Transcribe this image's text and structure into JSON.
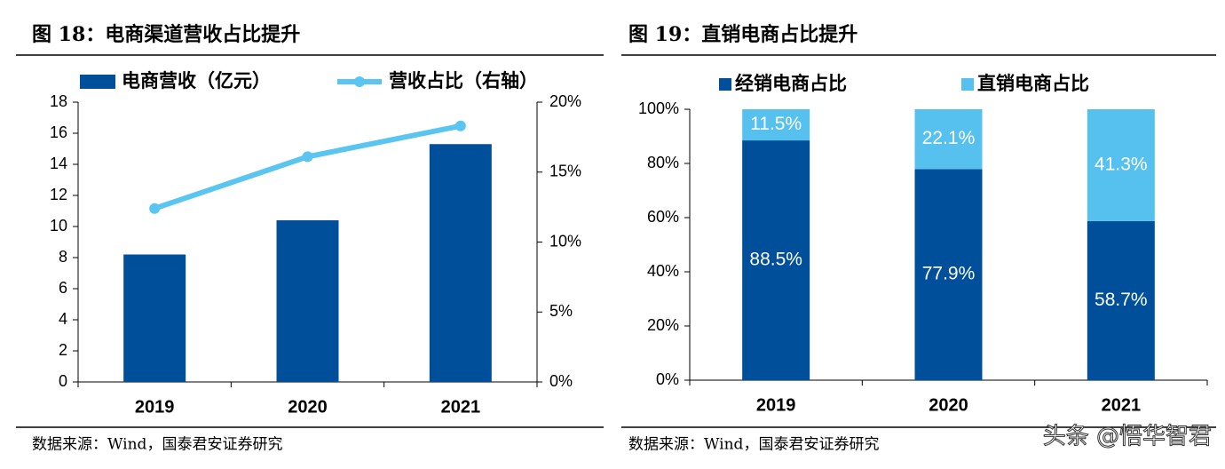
{
  "chart_data": [
    {
      "type": "combo",
      "title": "图 18：电商渠道营收占比提升",
      "source": "数据来源：Wind，国泰君安证券研究",
      "categories": [
        "2019",
        "2020",
        "2021"
      ],
      "series": [
        {
          "name": "电商营收（亿元）",
          "type": "bar",
          "color": "#004f9a",
          "values": [
            8.2,
            10.4,
            15.3
          ]
        },
        {
          "name": "营收占比（右轴）",
          "type": "line",
          "axis": "y2",
          "color": "#5bc5f2",
          "values": [
            12.4,
            16.1,
            18.3
          ]
        }
      ],
      "ylim": [
        0,
        18
      ],
      "yticks": [
        0,
        2,
        4,
        6,
        8,
        10,
        12,
        14,
        16,
        18
      ],
      "y2lim": [
        0,
        20
      ],
      "y2ticks": [
        {
          "value": 0,
          "label": "0%"
        },
        {
          "value": 5,
          "label": "5%"
        },
        {
          "value": 10,
          "label": "10%"
        },
        {
          "value": 15,
          "label": "15%"
        },
        {
          "value": 20,
          "label": "20%"
        }
      ]
    },
    {
      "type": "stacked_bar",
      "title": "图 19：直销电商占比提升",
      "source": "数据来源：Wind，国泰君安证券研究",
      "categories": [
        "2019",
        "2020",
        "2021"
      ],
      "series": [
        {
          "name": "经销电商占比",
          "color": "#004f9a",
          "values": [
            88.5,
            77.9,
            58.7
          ],
          "value_labels": [
            "88.5%",
            "77.9%",
            "58.7%"
          ]
        },
        {
          "name": "直销电商占比",
          "color": "#56c1ef",
          "values": [
            11.5,
            22.1,
            41.3
          ],
          "value_labels": [
            "11.5%",
            "22.1%",
            "41.3%"
          ]
        }
      ],
      "ylim": [
        0,
        100
      ],
      "yticks": [
        {
          "value": 0,
          "label": "0%"
        },
        {
          "value": 20,
          "label": "20%"
        },
        {
          "value": 40,
          "label": "40%"
        },
        {
          "value": 60,
          "label": "60%"
        },
        {
          "value": 80,
          "label": "80%"
        },
        {
          "value": 100,
          "label": "100%"
        }
      ]
    }
  ],
  "watermark": "头条 @悟华智君"
}
